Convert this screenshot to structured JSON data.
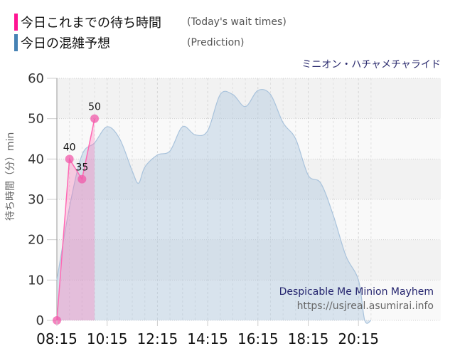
{
  "legend": {
    "actual": {
      "label_jp": "今日これまでの待ち時間",
      "label_en": "(Today's wait times)",
      "color": "#ff1493"
    },
    "prediction": {
      "label_jp": "今日の混雑予想",
      "label_en": "(Prediction)",
      "color": "#4682b4"
    }
  },
  "ride_name_jp": "ミニオン・ハチャメチャライド",
  "ride_name_en": "Despicable Me Minion Mayhem",
  "site_url": "https://usjreal.asumirai.info",
  "y_axis_label": "待ち時間（分）min",
  "chart_data": {
    "type": "area",
    "title": "ミニオン・ハチャメチャライド",
    "xlabel": "",
    "ylabel": "待ち時間（分）min",
    "ylim": [
      0,
      60
    ],
    "yticks": [
      0,
      10,
      20,
      30,
      40,
      50,
      60
    ],
    "xticks": [
      "08:15",
      "10:15",
      "12:15",
      "14:15",
      "16:15",
      "18:15",
      "20:15"
    ],
    "grid": true,
    "legend_position": "top-left",
    "series": [
      {
        "name": "今日これまでの待ち時間 (Today's wait times)",
        "color": "#ff1493",
        "x": [
          "08:15",
          "08:45",
          "09:15",
          "09:45"
        ],
        "values": [
          0,
          40,
          35,
          50
        ],
        "data_labels": [
          "",
          "40",
          "35",
          "50"
        ]
      },
      {
        "name": "今日の混雑予想 (Prediction)",
        "color": "#4682b4",
        "x": [
          "08:15",
          "08:45",
          "09:15",
          "09:45",
          "10:15",
          "10:45",
          "11:15",
          "11:30",
          "11:45",
          "12:15",
          "12:45",
          "13:15",
          "13:45",
          "14:15",
          "14:45",
          "15:15",
          "15:45",
          "16:15",
          "16:45",
          "17:15",
          "17:45",
          "18:15",
          "18:45",
          "19:15",
          "19:45",
          "20:15",
          "20:30",
          "20:45"
        ],
        "values": [
          10,
          28,
          41,
          44,
          48,
          45,
          37,
          34,
          38,
          41,
          42,
          48,
          46,
          47,
          56,
          56,
          53,
          57,
          56,
          49,
          45,
          36,
          34,
          26,
          16,
          10,
          0,
          0
        ]
      }
    ]
  }
}
